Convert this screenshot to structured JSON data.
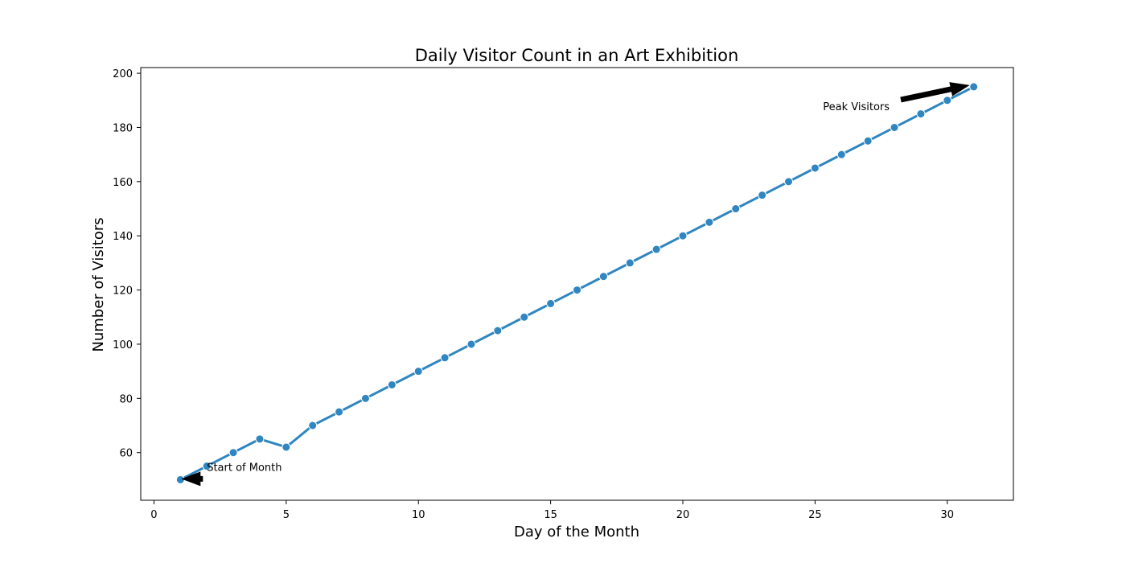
{
  "chart_data": {
    "type": "line",
    "title": "Daily Visitor Count in an Art Exhibition",
    "xlabel": "Day of the Month",
    "ylabel": "Number of Visitors",
    "xlim": [
      -0.5,
      32.5
    ],
    "ylim": [
      42.4,
      202.1
    ],
    "xticks": [
      0,
      5,
      10,
      15,
      20,
      25,
      30
    ],
    "yticks": [
      60,
      80,
      100,
      120,
      140,
      160,
      180,
      200
    ],
    "grid": false,
    "legend": "none",
    "line_color": "#2f86c0",
    "series": [
      {
        "x": [
          1,
          2,
          3,
          4,
          5,
          6,
          7,
          8,
          9,
          10,
          11,
          12,
          13,
          14,
          15,
          16,
          17,
          18,
          19,
          20,
          21,
          22,
          23,
          24,
          25,
          26,
          27,
          28,
          29,
          30,
          31
        ],
        "values": [
          50,
          55,
          60,
          65,
          62,
          70,
          75,
          80,
          85,
          90,
          95,
          100,
          105,
          110,
          115,
          120,
          125,
          130,
          135,
          140,
          145,
          150,
          155,
          160,
          165,
          170,
          175,
          180,
          185,
          190,
          195
        ]
      }
    ],
    "annotations": [
      {
        "text": "Start of Month",
        "point": [
          1,
          50
        ],
        "text_pos": [
          2,
          52
        ]
      },
      {
        "text": "Peak Visitors",
        "point": [
          31,
          195
        ],
        "text_pos": [
          25.3,
          187
        ]
      }
    ]
  }
}
